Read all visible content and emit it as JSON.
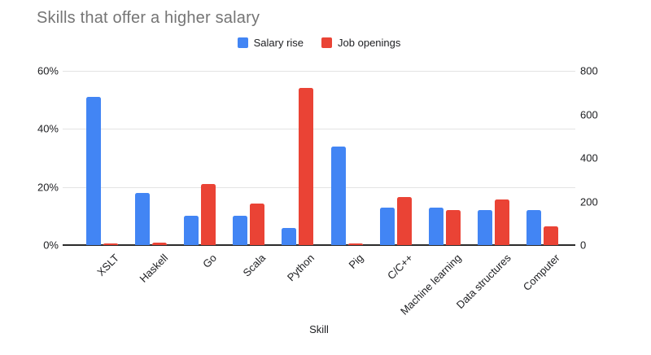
{
  "chart_data": {
    "type": "bar",
    "title": "Skills that offer a higher salary",
    "xlabel": "Skill",
    "legend_position": "top-center",
    "grid": true,
    "categories": [
      "XSLT",
      "Haskell",
      "Go",
      "Scala",
      "Python",
      "Pig",
      "C/C++",
      "Machine learning",
      "Data structures",
      "Computer"
    ],
    "series": [
      {
        "name": "Salary rise",
        "color": "#4285F4",
        "axis": "left",
        "unit": "%",
        "values": [
          51,
          18,
          10,
          10,
          6,
          34,
          13,
          13,
          12,
          12
        ]
      },
      {
        "name": "Job openings",
        "color": "#EA4335",
        "axis": "right",
        "unit": "count",
        "values": [
          8,
          10,
          280,
          190,
          720,
          8,
          220,
          160,
          210,
          85
        ]
      }
    ],
    "left_axis": {
      "min": 0,
      "max": 60,
      "ticks": [
        "0%",
        "20%",
        "40%",
        "60%"
      ]
    },
    "right_axis": {
      "min": 0,
      "max": 800,
      "ticks": [
        "0",
        "200",
        "400",
        "600",
        "800"
      ]
    }
  },
  "colors": {
    "title_text": "#757575",
    "axis_text": "#202124",
    "gridline": "#e3e3e3",
    "baseline": "#2b2b2b",
    "background": "#ffffff"
  }
}
